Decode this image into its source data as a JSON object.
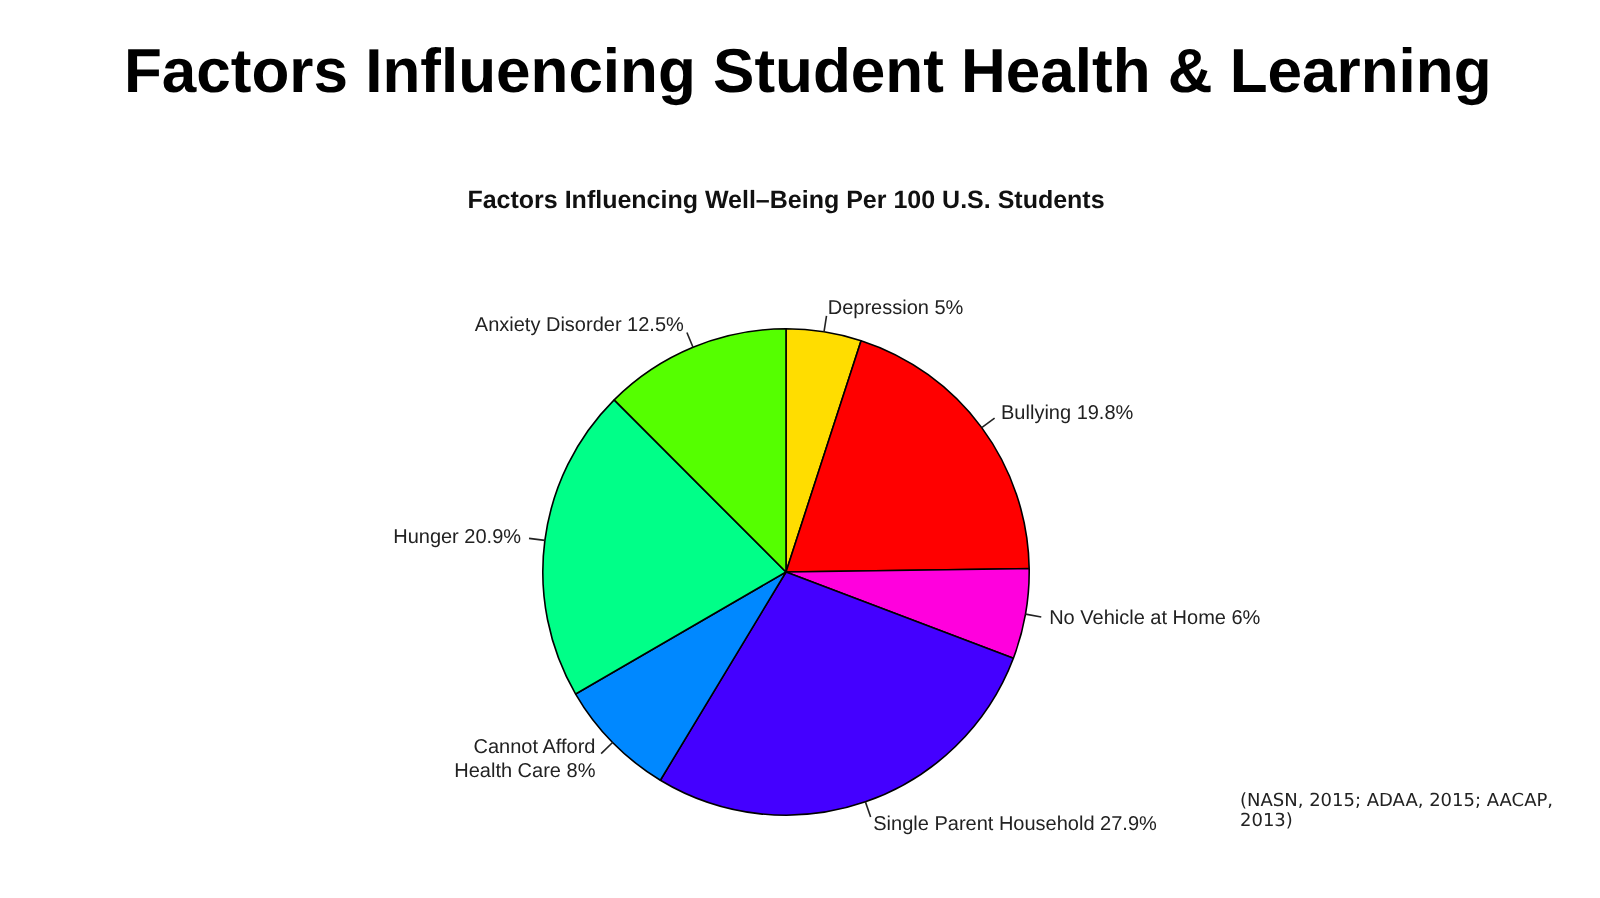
{
  "chart_data": {
    "type": "pie",
    "title": "Factors Influencing Student Health & Learning",
    "subtitle": "Factors Influencing Well–Being Per 100 U.S. Students",
    "categories": [
      "Depression",
      "Bullying",
      "No Vehicle at Home",
      "Single Parent Household",
      "Cannot Afford Health Care",
      "Hunger",
      "Anxiety Disorder"
    ],
    "values": [
      5,
      19.8,
      6,
      27.9,
      8,
      20.9,
      12.5
    ],
    "value_labels": [
      "5%",
      "19.8%",
      "6%",
      "27.9%",
      "8%",
      "20.9%",
      "12.5%"
    ],
    "colors": [
      "#ffdd00",
      "#ff0000",
      "#ff00dd",
      "#4400ff",
      "#0088ff",
      "#00ff88",
      "#55ff00"
    ],
    "legend": false,
    "annotations": [
      "(NASN, 2015; ADAA, 2015; AACAP, 2013)"
    ]
  }
}
